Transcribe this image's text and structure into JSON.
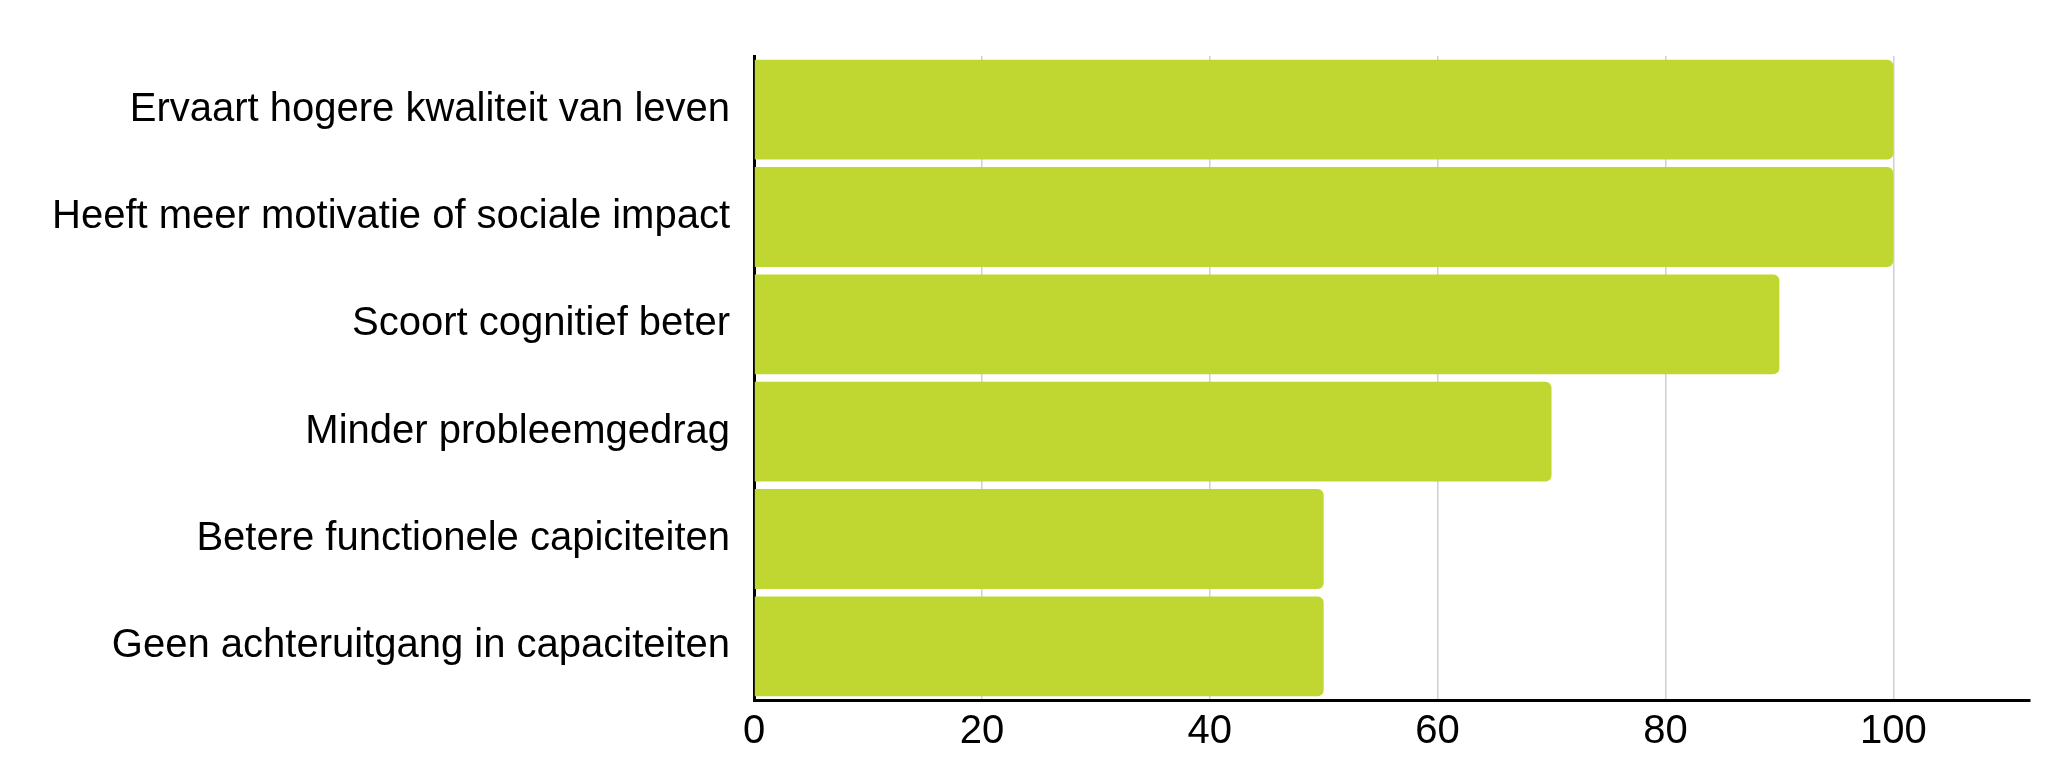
{
  "chart_data": {
    "type": "bar",
    "orientation": "horizontal",
    "categories": [
      "Ervaart hogere kwaliteit van leven",
      "Heeft meer motivatie of sociale impact",
      "Scoort cognitief beter",
      "Minder probleemgedrag",
      "Betere functionele capiciteiten",
      "Geen achteruitgang in capaciteiten"
    ],
    "values": [
      100,
      100,
      90,
      70,
      50,
      50
    ],
    "color": "#bfd730",
    "xlim": [
      0,
      112
    ],
    "xticks": [
      0,
      20,
      40,
      60,
      80,
      100
    ],
    "grid": "x",
    "legend": false
  }
}
